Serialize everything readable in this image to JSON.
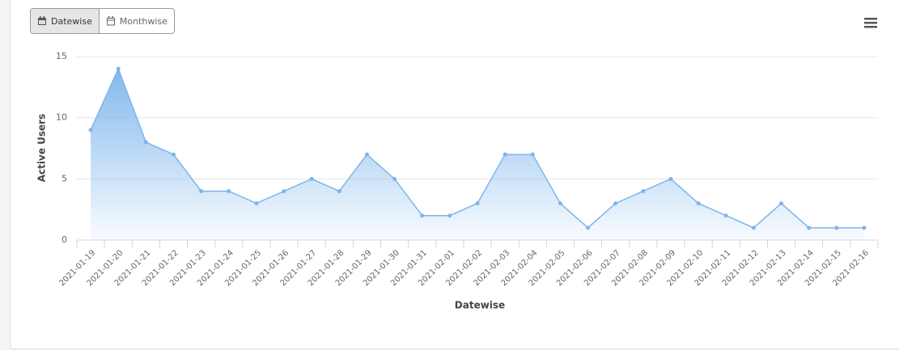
{
  "ui": {
    "buttons": [
      "Datewise",
      "Monthwise"
    ]
  },
  "chart_data": {
    "type": "area",
    "x_label": "Datewise",
    "y_label": "Active Users",
    "categories": [
      "2021-01-19",
      "2021-01-20",
      "2021-01-21",
      "2021-01-22",
      "2021-01-23",
      "2021-01-24",
      "2021-01-25",
      "2021-01-26",
      "2021-01-27",
      "2021-01-28",
      "2021-01-29",
      "2021-01-30",
      "2021-01-31",
      "2021-02-01",
      "2021-02-02",
      "2021-02-03",
      "2021-02-04",
      "2021-02-05",
      "2021-02-06",
      "2021-02-07",
      "2021-02-08",
      "2021-02-09",
      "2021-02-10",
      "2021-02-11",
      "2021-02-12",
      "2021-02-13",
      "2021-02-14",
      "2021-02-15",
      "2021-02-16"
    ],
    "values": [
      9,
      14,
      8,
      7,
      4,
      4,
      3,
      4,
      5,
      4,
      7,
      5,
      2,
      2,
      3,
      7,
      7,
      3,
      1,
      3,
      4,
      5,
      3,
      2,
      1,
      3,
      1,
      1,
      1
    ],
    "color": "#7cb5ec",
    "ylim": [
      0,
      15
    ],
    "yticks": [
      0,
      5,
      10,
      15
    ],
    "grid": true
  }
}
